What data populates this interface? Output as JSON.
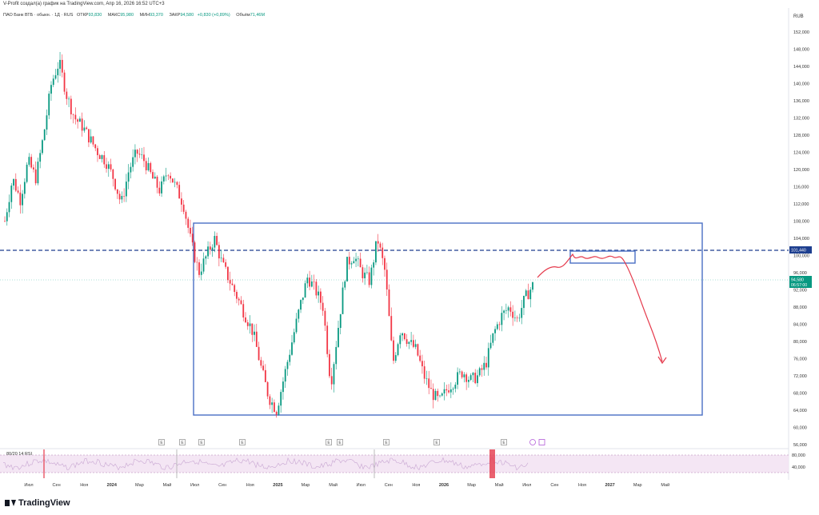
{
  "header": {
    "caption": "V-Profit создал(а) график на TradingView.com, Апр 16, 2026 16:52 UTC+3",
    "symbol": "ПАО Банк ВТБ · обыкн. · 1Д · RUS",
    "open_label": "ОТКР",
    "open_value": "93,830",
    "high_label": "МАКС",
    "high_value": "95,980",
    "low_label": "МИН",
    "low_value": "93,370",
    "close_label": "ЗАКР",
    "close_value": "94,580",
    "change": "+0,830 (+0,89%)",
    "volume_label": "Объём",
    "volume_value": "71,46M",
    "currency": "RUB"
  },
  "rsi": {
    "label": "80/20 14 RSI",
    "levels": [
      "80,000",
      "40,000"
    ]
  },
  "brand": "TradingView",
  "price_tags": {
    "level": "101,440",
    "last_price": "94,580",
    "countdown": "06:57:00"
  },
  "events": [
    "E",
    "E",
    "E",
    "E",
    "E",
    "E",
    "E",
    "E",
    "E",
    "E"
  ],
  "chart_data": {
    "type": "candlestick",
    "title": "",
    "y_ticks": [
      "152,000",
      "148,000",
      "144,000",
      "140,000",
      "136,000",
      "132,000",
      "128,000",
      "124,000",
      "120,000",
      "116,000",
      "112,000",
      "108,000",
      "104,000",
      "100,000",
      "96,000",
      "92,000",
      "88,000",
      "84,000",
      "80,000",
      "76,000",
      "72,000",
      "68,000",
      "64,000",
      "60,000",
      "56,000"
    ],
    "ylim": [
      54,
      154
    ],
    "x_ticks": [
      "Июл",
      "Сен",
      "Ноя",
      "2024",
      "Мар",
      "Май",
      "Июл",
      "Сен",
      "Ноя",
      "2025",
      "Мар",
      "Май",
      "Июл",
      "Сен",
      "Ноя",
      "2026",
      "Мар",
      "Май",
      "Июл",
      "Сен",
      "Ноя",
      "2027",
      "Мар",
      "Май"
    ],
    "x_bold": [
      "2024",
      "2025",
      "2026",
      "2027"
    ],
    "price_path": [
      [
        0,
        108
      ],
      [
        1,
        118
      ],
      [
        2,
        113
      ],
      [
        3,
        122
      ],
      [
        4,
        118
      ],
      [
        5,
        128
      ],
      [
        6,
        140
      ],
      [
        7,
        145
      ],
      [
        8,
        137
      ],
      [
        9,
        132
      ],
      [
        10,
        130
      ],
      [
        11,
        127
      ],
      [
        12,
        124
      ],
      [
        13,
        122
      ],
      [
        14,
        118
      ],
      [
        15,
        112
      ],
      [
        16,
        120
      ],
      [
        17,
        124
      ],
      [
        18,
        122
      ],
      [
        19,
        118
      ],
      [
        20,
        115
      ],
      [
        21,
        120
      ],
      [
        22,
        116
      ],
      [
        23,
        112
      ],
      [
        24,
        103
      ],
      [
        25,
        96
      ],
      [
        26,
        100
      ],
      [
        27,
        104
      ],
      [
        28,
        98
      ],
      [
        29,
        94
      ],
      [
        30,
        90
      ],
      [
        31,
        86
      ],
      [
        32,
        82
      ],
      [
        33,
        74
      ],
      [
        34,
        67
      ],
      [
        35,
        64
      ],
      [
        36,
        72
      ],
      [
        37,
        80
      ],
      [
        38,
        88
      ],
      [
        39,
        95
      ],
      [
        40,
        92
      ],
      [
        41,
        88
      ],
      [
        42,
        70
      ],
      [
        43,
        84
      ],
      [
        44,
        98
      ],
      [
        45,
        100
      ],
      [
        46,
        96
      ],
      [
        47,
        94
      ],
      [
        48,
        104
      ],
      [
        49,
        96
      ],
      [
        50,
        75
      ],
      [
        51,
        83
      ],
      [
        52,
        80
      ],
      [
        53,
        78
      ],
      [
        54,
        72
      ],
      [
        55,
        68
      ],
      [
        56,
        66
      ],
      [
        57,
        69
      ],
      [
        58,
        71
      ],
      [
        59,
        73
      ],
      [
        60,
        71
      ],
      [
        61,
        72
      ],
      [
        62,
        75
      ],
      [
        63,
        82
      ],
      [
        64,
        86
      ],
      [
        65,
        88
      ],
      [
        66,
        85
      ],
      [
        67,
        90
      ],
      [
        68,
        93
      ]
    ],
    "levels": {
      "horizontal_dashed": 101.44,
      "last_price": 94.58
    },
    "annotations": {
      "range_box": {
        "from": "Июл 2024",
        "to": "Ноя 2026",
        "top": 107.5,
        "bottom": 63.0
      },
      "target_box": {
        "top": 101.4,
        "bottom": 98.2
      },
      "forecast": "up to ~101 then down to ~75"
    },
    "grid": false,
    "legend": "top-left"
  }
}
